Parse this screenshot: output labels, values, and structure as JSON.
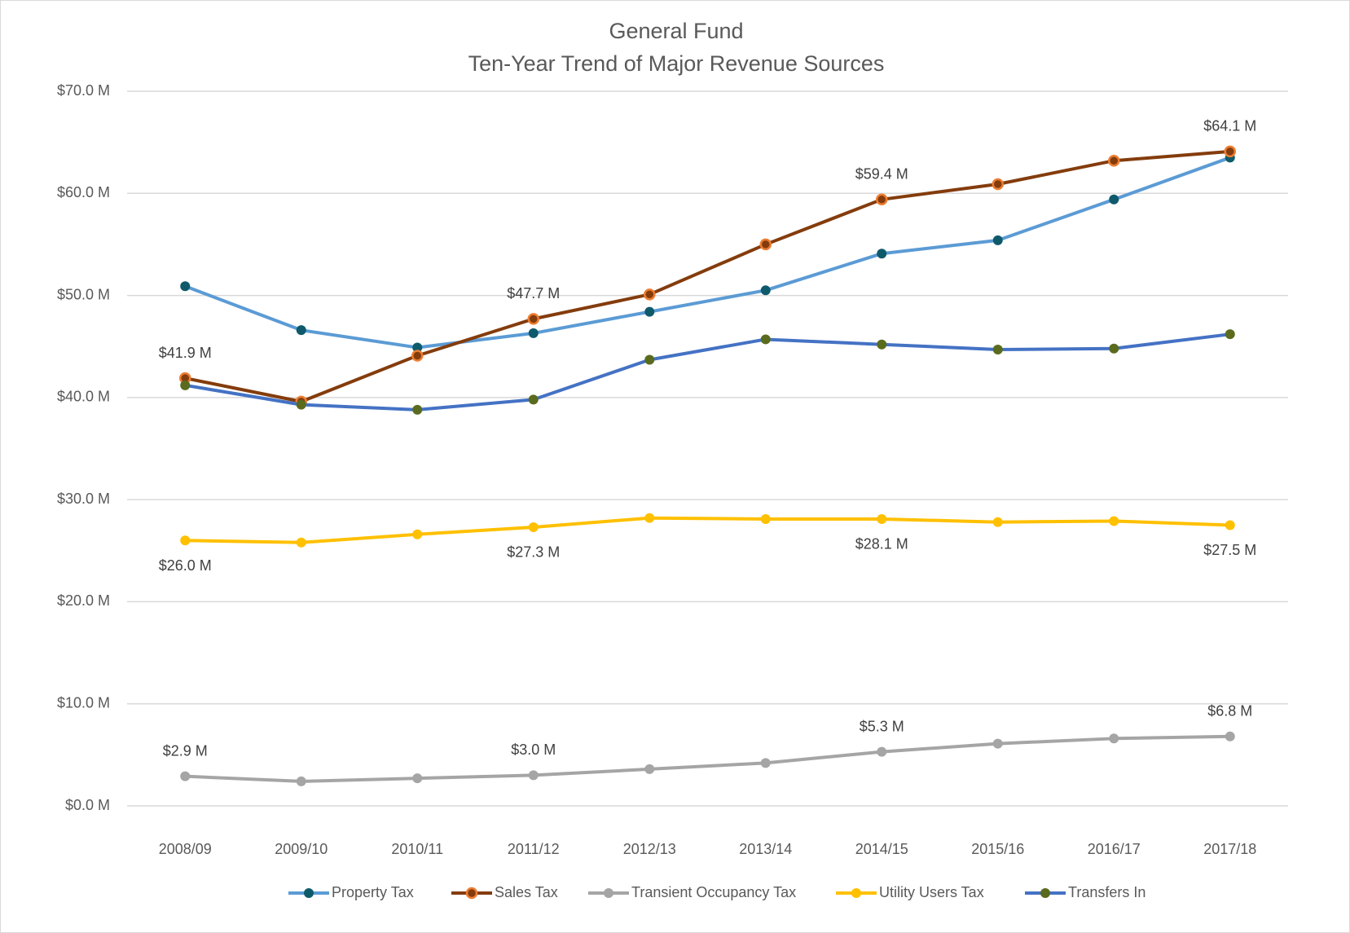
{
  "chart_data": {
    "type": "line",
    "title": [
      "General Fund",
      "Ten-Year Trend of Major Revenue Sources"
    ],
    "categories": [
      "2008/09",
      "2009/10",
      "2010/11",
      "2011/12",
      "2012/13",
      "2013/14",
      "2014/15",
      "2015/16",
      "2016/17",
      "2017/18"
    ],
    "ylim": [
      0,
      70
    ],
    "yticks": [
      {
        "value": 0,
        "label": "$0.0 M"
      },
      {
        "value": 10,
        "label": "$10.0 M"
      },
      {
        "value": 20,
        "label": "$20.0 M"
      },
      {
        "value": 30,
        "label": "$30.0 M"
      },
      {
        "value": 40,
        "label": "$40.0 M"
      },
      {
        "value": 50,
        "label": "$50.0 M"
      },
      {
        "value": 60,
        "label": "$60.0 M"
      },
      {
        "value": 70,
        "label": "$70.0 M"
      }
    ],
    "grid": true,
    "legend": "bottom",
    "series": [
      {
        "name": "Property Tax",
        "color": "#5b9bd5",
        "marker_color": "#0e5a6b",
        "values": [
          50.9,
          46.6,
          44.9,
          46.3,
          48.4,
          50.5,
          54.1,
          55.4,
          59.4,
          63.5
        ]
      },
      {
        "name": "Sales Tax",
        "color": "#843c0c",
        "marker_color": "#ed7d31",
        "values": [
          41.9,
          39.6,
          44.1,
          47.7,
          50.1,
          55.0,
          59.4,
          60.9,
          63.2,
          64.1
        ],
        "value_labels": [
          "$41.9 M",
          null,
          null,
          "$47.7 M",
          null,
          null,
          "$59.4 M",
          null,
          null,
          "$64.1 M"
        ]
      },
      {
        "name": "Transient Occupancy Tax",
        "color": "#a5a5a5",
        "marker_color": "#a5a5a5",
        "values": [
          2.9,
          2.4,
          2.7,
          3.0,
          3.6,
          4.2,
          5.3,
          6.1,
          6.6,
          6.8
        ],
        "value_labels": [
          "$2.9 M",
          null,
          null,
          "$3.0 M",
          null,
          null,
          "$5.3 M",
          null,
          null,
          "$6.8 M"
        ]
      },
      {
        "name": "Utility Users Tax",
        "color": "#ffc000",
        "marker_color": "#ffc000",
        "values": [
          26.0,
          25.8,
          26.6,
          27.3,
          28.2,
          28.1,
          28.1,
          27.8,
          27.9,
          27.5
        ],
        "value_labels": [
          "$26.0 M",
          null,
          null,
          "$27.3 M",
          null,
          null,
          "$28.1 M",
          null,
          null,
          "$27.5 M"
        ]
      },
      {
        "name": "Transfers In",
        "color": "#4472c4",
        "marker_color": "#5a6b1e",
        "values": [
          41.2,
          39.3,
          38.8,
          39.8,
          43.7,
          45.7,
          45.2,
          44.7,
          44.8,
          46.2
        ]
      }
    ]
  }
}
